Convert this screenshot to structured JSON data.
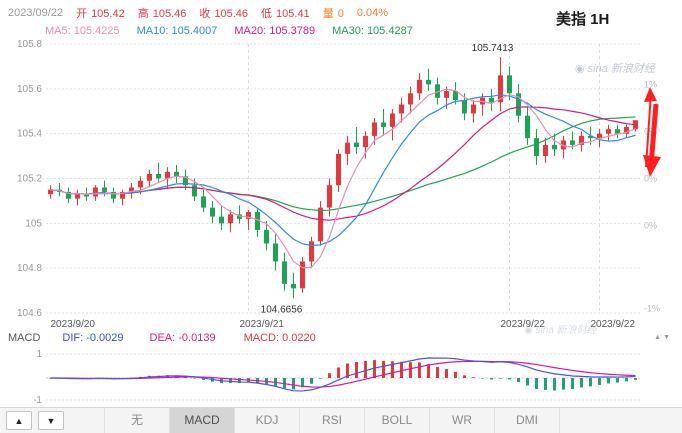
{
  "header": {
    "title": "美指 1H",
    "fields": [
      {
        "key": "date",
        "label": "",
        "value": "2023/09/22",
        "color": "#999999"
      },
      {
        "key": "open",
        "label": "开",
        "value": "105.42",
        "color": "#e4393c"
      },
      {
        "key": "high",
        "label": "高",
        "value": "105.46",
        "color": "#e4393c"
      },
      {
        "key": "close",
        "label": "收",
        "value": "105.46",
        "color": "#e4393c"
      },
      {
        "key": "low",
        "label": "低",
        "value": "105.41",
        "color": "#e4393c"
      },
      {
        "key": "volume",
        "label": "量",
        "value": "0",
        "color": "#ff7e26"
      },
      {
        "key": "change-percent",
        "label": "",
        "value": "0.04%",
        "color": "#ff7e26"
      }
    ]
  },
  "watermark": {
    "icon": "◉",
    "text": "sina 新浪财经"
  },
  "chart_data": {
    "type": "candlestick",
    "timeframe": "1H",
    "symbol": "美指",
    "ylim": [
      104.6,
      105.8
    ],
    "grid": true,
    "y_axis": [
      {
        "price": 105.8,
        "label": "105.8"
      },
      {
        "price": 105.6,
        "label": "105.6"
      },
      {
        "price": 105.4,
        "label": "105.4"
      },
      {
        "price": 105.2,
        "label": "105.2"
      },
      {
        "price": 105.0,
        "label": "105"
      },
      {
        "price": 104.8,
        "label": "104.8"
      },
      {
        "price": 104.6,
        "label": "104.6"
      }
    ],
    "right_axis": [
      {
        "price": 105.62,
        "text": "1%"
      },
      {
        "price": 105.41,
        "text": "0%"
      },
      {
        "price": 105.2,
        "text": "0%"
      },
      {
        "price": 104.99,
        "text": "0%"
      },
      {
        "price": 104.62,
        "text": "-1%"
      }
    ],
    "x_labels": [
      {
        "text": "2023/9/20",
        "idx": 1,
        "grid": false
      },
      {
        "text": "2023/9/21",
        "idx": 22,
        "grid": true
      },
      {
        "text": "2023/9/22",
        "idx": 51,
        "grid": true
      },
      {
        "text": "2023/9/22",
        "idx": 61,
        "grid": true
      }
    ],
    "high_idx": 50,
    "high_label": "105.7413",
    "low_idx": 27,
    "low_label": "104.6656",
    "colors": {
      "up": "#e4393c",
      "down": "#1ca454",
      "grid": "#e3e3e3",
      "vgrid": "#dddddd",
      "axis_text": "#999999",
      "right_axis_text": "#bbbbbb",
      "annotation": "#333333"
    },
    "ma_lines": [
      {
        "text": "MA5: 105.4225",
        "period": 5,
        "color": "#f08bb4"
      },
      {
        "text": "MA10: 105.4007",
        "period": 10,
        "color": "#2e8de0"
      },
      {
        "text": "MA20: 105.3789",
        "period": 20,
        "color": "#d81b7f"
      },
      {
        "text": "MA30: 105.4287",
        "period": 30,
        "color": "#1fa352"
      }
    ],
    "candles": [
      [
        105.13,
        105.17,
        105.11,
        105.15
      ],
      [
        105.15,
        105.18,
        105.12,
        105.14
      ],
      [
        105.14,
        105.16,
        105.09,
        105.11
      ],
      [
        105.11,
        105.15,
        105.08,
        105.13
      ],
      [
        105.13,
        105.16,
        105.1,
        105.12
      ],
      [
        105.12,
        105.17,
        105.1,
        105.16
      ],
      [
        105.16,
        105.19,
        105.12,
        105.14
      ],
      [
        105.14,
        105.16,
        105.09,
        105.11
      ],
      [
        105.11,
        105.15,
        105.08,
        105.14
      ],
      [
        105.14,
        105.18,
        105.11,
        105.16
      ],
      [
        105.16,
        105.21,
        105.13,
        105.19
      ],
      [
        105.19,
        105.24,
        105.16,
        105.22
      ],
      [
        105.22,
        105.27,
        105.18,
        105.2
      ],
      [
        105.2,
        105.25,
        105.16,
        105.23
      ],
      [
        105.23,
        105.26,
        105.18,
        105.21
      ],
      [
        105.21,
        105.24,
        105.15,
        105.17
      ],
      [
        105.17,
        105.2,
        105.1,
        105.12
      ],
      [
        105.12,
        105.15,
        105.05,
        105.07
      ],
      [
        105.07,
        105.1,
        105.0,
        105.03
      ],
      [
        105.03,
        105.08,
        104.97,
        105.0
      ],
      [
        105.0,
        105.06,
        104.96,
        105.04
      ],
      [
        105.04,
        105.08,
        105.0,
        105.02
      ],
      [
        105.02,
        105.06,
        104.97,
        105.05
      ],
      [
        105.05,
        105.07,
        104.94,
        104.97
      ],
      [
        104.97,
        105.01,
        104.88,
        104.91
      ],
      [
        104.91,
        104.95,
        104.79,
        104.83
      ],
      [
        104.83,
        104.87,
        104.7,
        104.73
      ],
      [
        104.73,
        104.78,
        104.6656,
        104.71
      ],
      [
        104.71,
        104.85,
        104.69,
        104.83
      ],
      [
        104.83,
        104.94,
        104.8,
        104.92
      ],
      [
        104.92,
        105.1,
        104.9,
        105.07
      ],
      [
        105.07,
        105.2,
        105.03,
        105.17
      ],
      [
        105.17,
        105.33,
        105.14,
        105.31
      ],
      [
        105.31,
        105.39,
        105.26,
        105.36
      ],
      [
        105.36,
        105.43,
        105.31,
        105.34
      ],
      [
        105.34,
        105.41,
        105.29,
        105.39
      ],
      [
        105.39,
        105.47,
        105.35,
        105.45
      ],
      [
        105.45,
        105.51,
        105.39,
        105.43
      ],
      [
        105.43,
        105.51,
        105.37,
        105.49
      ],
      [
        105.49,
        105.56,
        105.45,
        105.53
      ],
      [
        105.53,
        105.61,
        105.49,
        105.58
      ],
      [
        105.58,
        105.67,
        105.55,
        105.64
      ],
      [
        105.64,
        105.69,
        105.59,
        105.62
      ],
      [
        105.62,
        105.65,
        105.53,
        105.56
      ],
      [
        105.56,
        105.61,
        105.51,
        105.59
      ],
      [
        105.59,
        105.63,
        105.53,
        105.55
      ],
      [
        105.55,
        105.58,
        105.46,
        105.49
      ],
      [
        105.49,
        105.55,
        105.45,
        105.53
      ],
      [
        105.53,
        105.58,
        105.48,
        105.56
      ],
      [
        105.56,
        105.6,
        105.5,
        105.54
      ],
      [
        105.54,
        105.7413,
        105.5,
        105.66
      ],
      [
        105.66,
        105.7,
        105.55,
        105.58
      ],
      [
        105.58,
        105.62,
        105.45,
        105.48
      ],
      [
        105.48,
        105.52,
        105.35,
        105.38
      ],
      [
        105.38,
        105.42,
        105.26,
        105.3
      ],
      [
        105.3,
        105.38,
        105.27,
        105.35
      ],
      [
        105.35,
        105.4,
        105.3,
        105.33
      ],
      [
        105.33,
        105.39,
        105.29,
        105.37
      ],
      [
        105.37,
        105.41,
        105.33,
        105.35
      ],
      [
        105.35,
        105.41,
        105.32,
        105.39
      ],
      [
        105.39,
        105.43,
        105.35,
        105.38
      ],
      [
        105.38,
        105.42,
        105.34,
        105.4
      ],
      [
        105.4,
        105.44,
        105.37,
        105.42
      ],
      [
        105.42,
        105.44,
        105.38,
        105.4
      ],
      [
        105.4,
        105.44,
        105.38,
        105.43
      ],
      [
        105.42,
        105.46,
        105.41,
        105.46
      ]
    ]
  },
  "macd": {
    "title": "MACD",
    "dif_text": "DIF: -0.0029",
    "dea_text": "DEA: -0.0139",
    "macd_text": "MACD: 0.0220",
    "y_top": "1",
    "y_bottom": "-1",
    "params": [
      12,
      26,
      9
    ],
    "colors": {
      "dif": "#4b55d8",
      "dea": "#d816a8",
      "pos": "#e4393c",
      "neg": "#23a07a",
      "dif_label": "#2f55d4",
      "dea_label": "#d81b7f",
      "macd_label": "#e4393c"
    }
  },
  "icons": {
    "up": "▲",
    "down": "▼"
  },
  "tabs": {
    "items": [
      {
        "key": "none",
        "label": "无"
      },
      {
        "key": "macd",
        "label": "MACD",
        "selected": true
      },
      {
        "key": "kdj",
        "label": "KDJ"
      },
      {
        "key": "rsi",
        "label": "RSI"
      },
      {
        "key": "boll",
        "label": "BOLL"
      },
      {
        "key": "wr",
        "label": "WR"
      },
      {
        "key": "dmi",
        "label": "DMI"
      }
    ]
  }
}
